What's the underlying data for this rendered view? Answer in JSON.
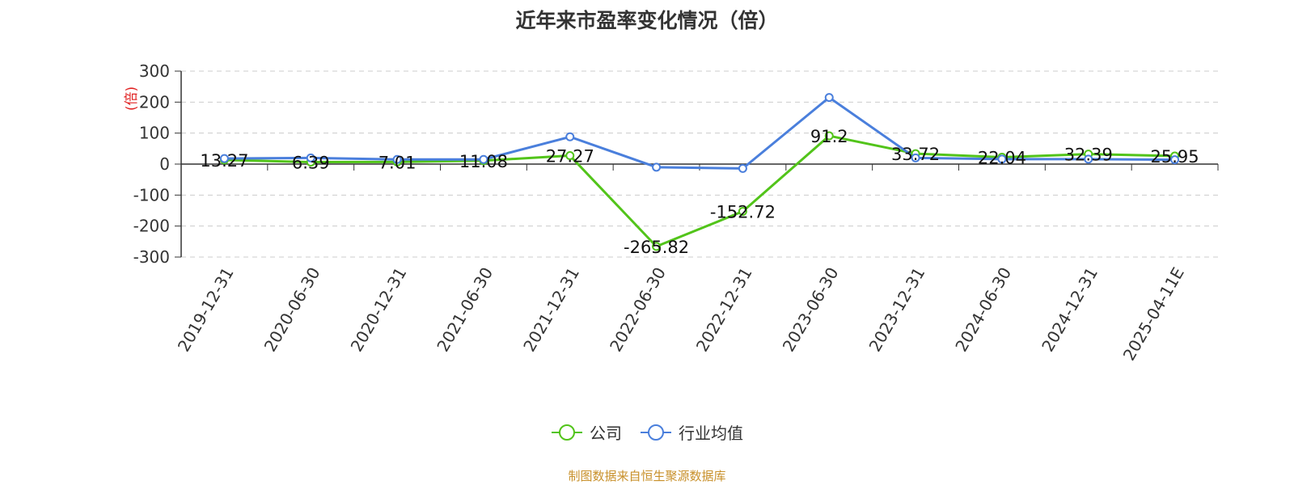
{
  "title": "近年来市盈率变化情况（倍）",
  "source_note": "制图数据来自恒生聚源数据库",
  "chart_data": {
    "type": "line",
    "title": "近年来市盈率变化情况（倍）",
    "ylabel": "(倍)",
    "ylim": [
      -300,
      300
    ],
    "yticks": [
      300,
      200,
      100,
      0,
      -100,
      -200,
      -300
    ],
    "grid": true,
    "legend_position": "bottom-center",
    "categories": [
      "2019-12-31",
      "2020-06-30",
      "2020-12-31",
      "2021-06-30",
      "2021-12-31",
      "2022-06-30",
      "2022-12-31",
      "2023-06-30",
      "2023-12-31",
      "2024-06-30",
      "2024-12-31",
      "2025-04-11E"
    ],
    "series": [
      {
        "name": "公司",
        "color": "#52c41a",
        "values": [
          13.27,
          6.39,
          7.01,
          11.08,
          27.27,
          -265.82,
          -152.72,
          91.2,
          33.72,
          22.04,
          32.39,
          25.95
        ],
        "labels": [
          "13.27",
          "6.39",
          "7.01",
          "11.08",
          "27.27",
          "-265.82",
          "-152.72",
          "91.2",
          "33.72",
          "22.04",
          "32.39",
          "25.95"
        ]
      },
      {
        "name": "行业均值",
        "color": "#4a7fdc",
        "values": [
          18,
          20,
          15,
          15,
          88,
          -10,
          -14,
          215,
          20,
          16,
          16,
          14
        ]
      }
    ]
  }
}
